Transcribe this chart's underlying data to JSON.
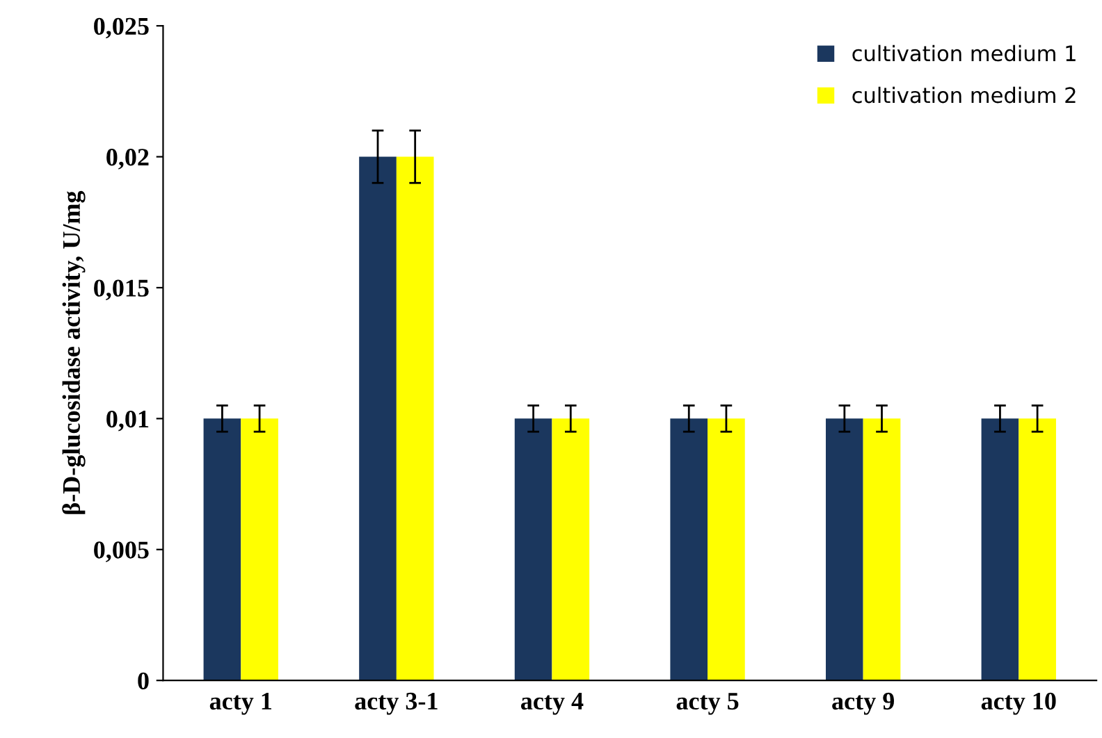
{
  "chart_data": {
    "type": "bar",
    "ylabel": "β-D-glucosidase activity, U/mg",
    "categories": [
      "acty 1",
      "acty 3-1",
      "acty 4",
      "acty 5",
      "acty 9",
      "acty 10"
    ],
    "series": [
      {
        "name": "cultivation medium 1",
        "color": "#1b375e",
        "values": [
          0.01,
          0.02,
          0.01,
          0.01,
          0.01,
          0.01
        ],
        "errors": [
          0.0005,
          0.001,
          0.0005,
          0.0005,
          0.0005,
          0.0005
        ]
      },
      {
        "name": "cultivation medium 2",
        "color": "#ffff00",
        "values": [
          0.01,
          0.02,
          0.01,
          0.01,
          0.01,
          0.01
        ],
        "errors": [
          0.0005,
          0.001,
          0.0005,
          0.0005,
          0.0005,
          0.0005
        ]
      }
    ],
    "ylim": [
      0,
      0.025
    ],
    "yticks": [
      {
        "value": 0,
        "label": "0"
      },
      {
        "value": 0.005,
        "label": "0,005"
      },
      {
        "value": 0.01,
        "label": "0,01"
      },
      {
        "value": 0.015,
        "label": "0,015"
      },
      {
        "value": 0.02,
        "label": "0,02"
      },
      {
        "value": 0.025,
        "label": "0,025"
      }
    ],
    "grid": false,
    "legend": "top right"
  }
}
